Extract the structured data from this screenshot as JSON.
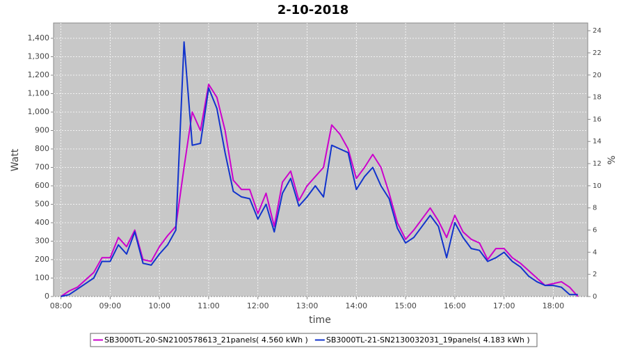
{
  "chart_data": {
    "type": "line",
    "title": "2-10-2018",
    "x_label": "time",
    "y_label": "Watt",
    "y2_label": "%",
    "x": [
      "08:00",
      "08:10",
      "08:20",
      "08:30",
      "08:40",
      "08:50",
      "09:00",
      "09:10",
      "09:20",
      "09:30",
      "09:40",
      "09:50",
      "10:00",
      "10:10",
      "10:20",
      "10:30",
      "10:40",
      "10:50",
      "11:00",
      "11:10",
      "11:20",
      "11:30",
      "11:40",
      "11:50",
      "12:00",
      "12:10",
      "12:20",
      "12:30",
      "12:40",
      "12:50",
      "13:00",
      "13:10",
      "13:20",
      "13:30",
      "13:40",
      "13:50",
      "14:00",
      "14:10",
      "14:20",
      "14:30",
      "14:40",
      "14:50",
      "15:00",
      "15:10",
      "15:20",
      "15:30",
      "15:40",
      "15:50",
      "16:00",
      "16:10",
      "16:20",
      "16:30",
      "16:40",
      "16:50",
      "17:00",
      "17:10",
      "17:20",
      "17:30",
      "17:40",
      "17:50",
      "18:00",
      "18:10",
      "18:20",
      "18:30"
    ],
    "series": [
      {
        "name": "SB3000TL-20-SN2100578613_21panels( 4.560 kWh )",
        "color": "#cc00cc",
        "values": [
          0,
          30,
          50,
          90,
          130,
          210,
          210,
          320,
          270,
          360,
          200,
          190,
          270,
          330,
          380,
          700,
          1000,
          900,
          1150,
          1080,
          900,
          630,
          580,
          580,
          450,
          560,
          380,
          620,
          680,
          520,
          600,
          650,
          700,
          930,
          880,
          800,
          640,
          700,
          770,
          700,
          560,
          400,
          310,
          360,
          420,
          480,
          410,
          320,
          440,
          350,
          310,
          290,
          200,
          260,
          260,
          210,
          180,
          140,
          100,
          60,
          70,
          80,
          50,
          0
        ]
      },
      {
        "name": "SB3000TL-21-SN2130032031_19panels( 4.183 kWh )",
        "color": "#1133cc",
        "values": [
          0,
          10,
          40,
          70,
          100,
          190,
          190,
          280,
          230,
          350,
          180,
          170,
          230,
          280,
          360,
          1380,
          820,
          830,
          1130,
          1020,
          780,
          570,
          540,
          530,
          420,
          500,
          350,
          560,
          640,
          490,
          540,
          600,
          540,
          820,
          800,
          780,
          580,
          650,
          700,
          600,
          530,
          370,
          290,
          320,
          380,
          440,
          380,
          210,
          400,
          320,
          260,
          250,
          190,
          210,
          240,
          190,
          160,
          110,
          80,
          60,
          60,
          50,
          10,
          10
        ]
      }
    ],
    "xlim": [
      "07:51",
      "18:42"
    ],
    "xticks": [
      "08:00",
      "09:00",
      "10:00",
      "11:00",
      "12:00",
      "13:00",
      "14:00",
      "15:00",
      "16:00",
      "17:00",
      "18:00"
    ],
    "ylim": [
      0,
      1483
    ],
    "yticks": [
      0,
      100,
      200,
      300,
      400,
      500,
      600,
      700,
      800,
      900,
      {
        "value": 1000,
        "label": "1,000"
      },
      {
        "value": 1100,
        "label": "1,100"
      },
      {
        "value": 1200,
        "label": "1,200"
      },
      {
        "value": 1300,
        "label": "1,300"
      },
      {
        "value": 1400,
        "label": "1,400"
      }
    ],
    "y2lim": [
      0,
      24.7
    ],
    "y2ticks": [
      0,
      2,
      4,
      6,
      8,
      10,
      12,
      14,
      16,
      18,
      20,
      22,
      24
    ],
    "grid": true,
    "legend": "bottom"
  }
}
